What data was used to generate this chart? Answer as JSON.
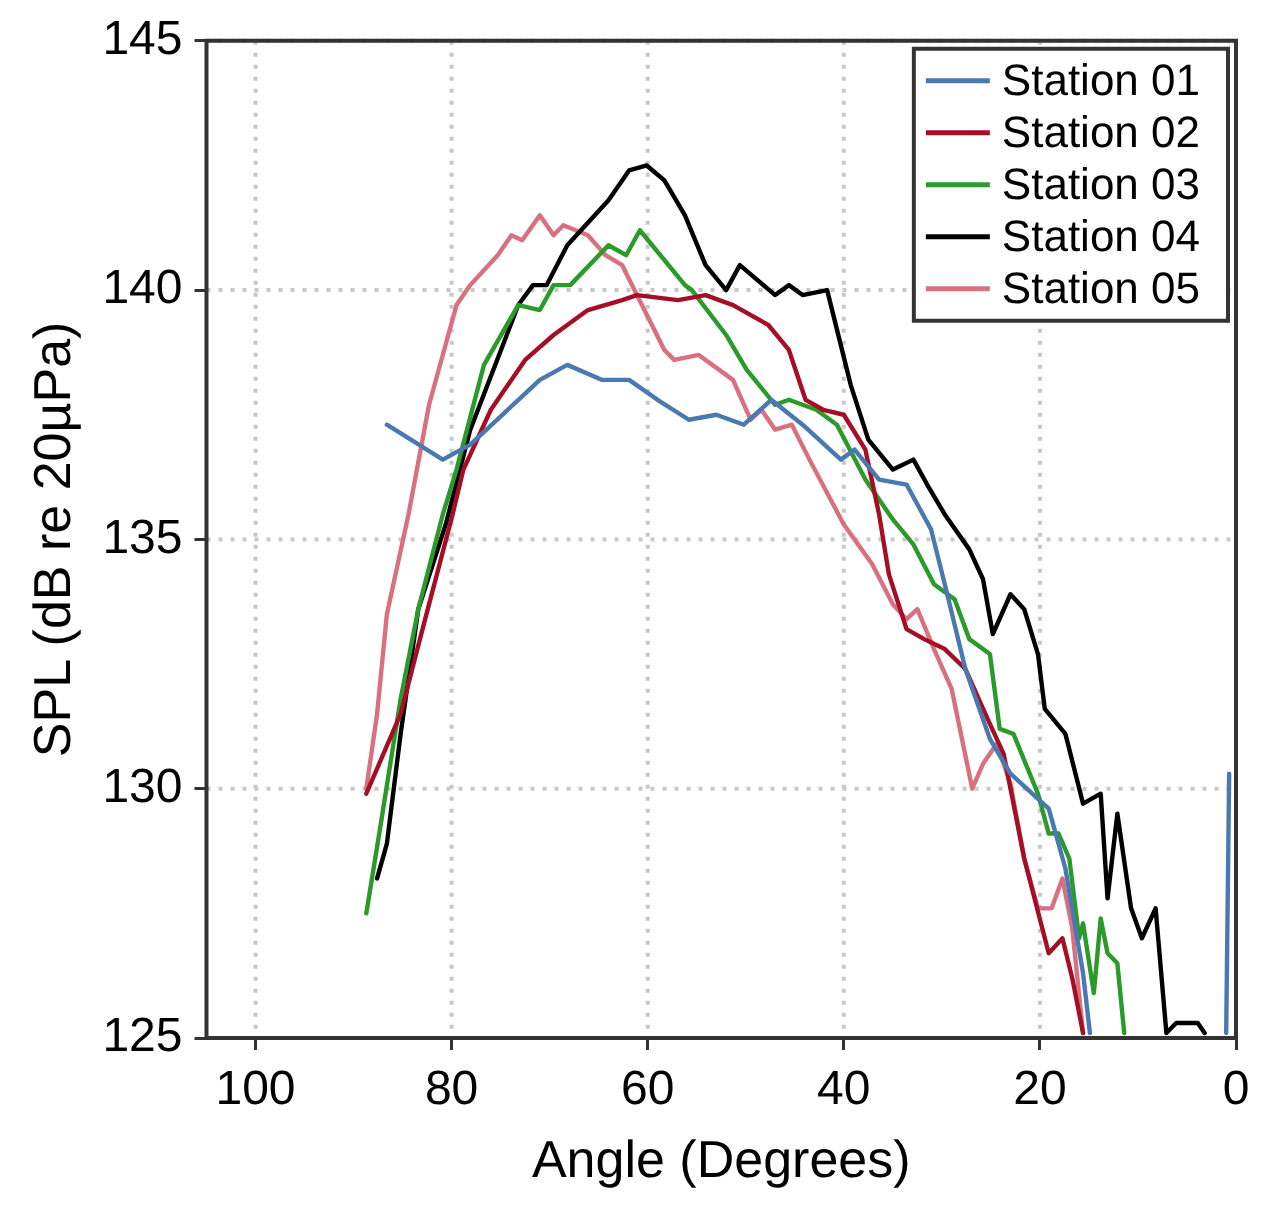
{
  "chart_data": {
    "type": "line",
    "xlabel": "Angle (Degrees)",
    "ylabel": "SPL (dB re 20µPa)",
    "xlim": [
      105,
      0
    ],
    "xticks": [
      100,
      80,
      60,
      40,
      20,
      0
    ],
    "ylim": [
      125,
      145
    ],
    "yticks": [
      125,
      130,
      135,
      140,
      145
    ],
    "grid": true,
    "legend": "top right",
    "marker": "none",
    "line_style": "solid",
    "series": [
      {
        "name": "Station 01",
        "color": "#4a78b0",
        "x": [
          86.6,
          80.9,
          78.1,
          71.0,
          68.2,
          64.7,
          61.9,
          59.0,
          55.8,
          53.0,
          50.2,
          47.4,
          44.2,
          40.3,
          38.9,
          36.4,
          33.6,
          31.1,
          29.7,
          27.6,
          25.1,
          23.0,
          19.1,
          17.4,
          15.6,
          14.9,
          8.0,
          1.0,
          0.7
        ],
        "values": [
          137.3,
          136.6,
          136.9,
          138.2,
          138.5,
          138.2,
          138.2,
          137.8,
          137.4,
          137.5,
          137.3,
          137.8,
          137.3,
          136.6,
          136.8,
          136.2,
          136.1,
          135.2,
          134.1,
          132.4,
          131.0,
          130.3,
          129.6,
          128.4,
          126.3,
          125.1,
          null,
          125.1,
          130.3
        ]
      },
      {
        "name": "Station 02",
        "color": "#a50f25",
        "x": [
          88.7,
          85.2,
          83.1,
          79.9,
          78.8,
          76.0,
          72.5,
          69.6,
          66.1,
          62.6,
          61.1,
          56.9,
          54.1,
          51.3,
          47.7,
          45.6,
          43.9,
          42.1,
          40.0,
          37.8,
          36.4,
          35.4,
          33.6,
          31.8,
          29.7,
          27.6,
          25.1,
          23.7,
          21.6,
          19.1,
          17.7,
          16.7,
          15.6
        ],
        "values": [
          129.9,
          131.5,
          133.1,
          135.5,
          136.4,
          137.6,
          138.6,
          139.1,
          139.6,
          139.8,
          139.9,
          139.8,
          139.9,
          139.7,
          139.3,
          138.8,
          137.8,
          137.6,
          137.5,
          136.8,
          135.5,
          134.3,
          133.2,
          133.0,
          132.8,
          132.4,
          131.3,
          130.7,
          128.6,
          126.7,
          127.0,
          126.2,
          125.1
        ]
      },
      {
        "name": "Station 03",
        "color": "#2a9a2a",
        "x": [
          88.7,
          87.3,
          85.2,
          83.4,
          80.9,
          79.5,
          76.7,
          73.2,
          71.0,
          69.6,
          67.9,
          64.0,
          62.2,
          60.8,
          56.2,
          55.5,
          52.0,
          49.9,
          47.0,
          45.6,
          42.8,
          40.7,
          37.8,
          35.0,
          32.9,
          30.8,
          28.7,
          27.2,
          25.1,
          24.1,
          22.7,
          20.2,
          19.1,
          18.1,
          17.0,
          16.0,
          15.6,
          14.5,
          13.8,
          13.1,
          12.1,
          11.4
        ],
        "values": [
          127.5,
          129.2,
          131.8,
          133.6,
          135.5,
          136.4,
          138.5,
          139.7,
          139.6,
          140.1,
          140.1,
          140.9,
          140.7,
          141.2,
          140.1,
          140.0,
          139.1,
          138.4,
          137.7,
          137.8,
          137.6,
          137.3,
          136.2,
          135.4,
          134.9,
          134.1,
          133.8,
          133.0,
          132.7,
          131.2,
          131.1,
          129.9,
          129.1,
          129.1,
          128.6,
          127.0,
          127.3,
          125.9,
          127.4,
          126.7,
          126.5,
          125.1
        ]
      },
      {
        "name": "Station 04",
        "color": "#000000",
        "x": [
          87.6,
          86.6,
          85.2,
          83.4,
          80.6,
          78.1,
          73.2,
          71.7,
          70.3,
          68.2,
          65.4,
          64.0,
          61.9,
          60.1,
          58.3,
          56.2,
          54.1,
          52.0,
          50.6,
          47.0,
          45.6,
          44.2,
          41.7,
          39.3,
          37.5,
          35.0,
          32.9,
          31.5,
          29.7,
          27.2,
          25.8,
          24.8,
          23.0,
          21.6,
          20.2,
          19.5,
          17.4,
          15.6,
          13.8,
          13.1,
          12.1,
          10.7,
          9.6,
          8.2,
          7.1,
          6.1,
          3.9,
          3.2
        ],
        "values": [
          128.2,
          128.9,
          131.1,
          133.6,
          135.3,
          137.2,
          139.7,
          140.1,
          140.1,
          140.9,
          141.5,
          141.8,
          142.4,
          142.5,
          142.2,
          141.5,
          140.5,
          140.0,
          140.5,
          139.9,
          140.1,
          139.9,
          140.0,
          138.1,
          137.0,
          136.4,
          136.6,
          136.1,
          135.5,
          134.8,
          134.2,
          133.1,
          133.9,
          133.6,
          132.7,
          131.6,
          131.1,
          129.7,
          129.9,
          127.8,
          129.5,
          127.6,
          127.0,
          127.6,
          125.1,
          125.3,
          125.3,
          125.1
        ]
      },
      {
        "name": "Station 05",
        "color": "#d9707f",
        "x": [
          88.7,
          87.6,
          86.6,
          84.4,
          82.3,
          79.5,
          78.1,
          75.3,
          73.9,
          72.8,
          71.0,
          69.6,
          68.6,
          66.1,
          64.3,
          62.6,
          61.1,
          58.3,
          57.3,
          54.8,
          51.3,
          49.5,
          48.4,
          47.0,
          45.3,
          43.5,
          40.0,
          37.1,
          35.0,
          33.6,
          32.5,
          30.8,
          29.0,
          26.9,
          25.8,
          24.4,
          23.0,
          21.6,
          20.2,
          18.8,
          17.7,
          16.7,
          15.6
        ],
        "values": [
          130.0,
          131.5,
          133.5,
          135.5,
          137.7,
          139.7,
          140.1,
          140.7,
          141.1,
          141.0,
          141.5,
          141.1,
          141.3,
          141.1,
          140.7,
          140.5,
          139.9,
          138.8,
          138.6,
          138.7,
          138.2,
          137.4,
          137.6,
          137.2,
          137.3,
          136.6,
          135.3,
          134.5,
          133.7,
          133.4,
          133.6,
          132.8,
          132.0,
          130.0,
          130.5,
          130.9,
          130.1,
          128.6,
          127.6,
          127.6,
          128.2,
          127.2,
          125.1
        ]
      }
    ]
  }
}
